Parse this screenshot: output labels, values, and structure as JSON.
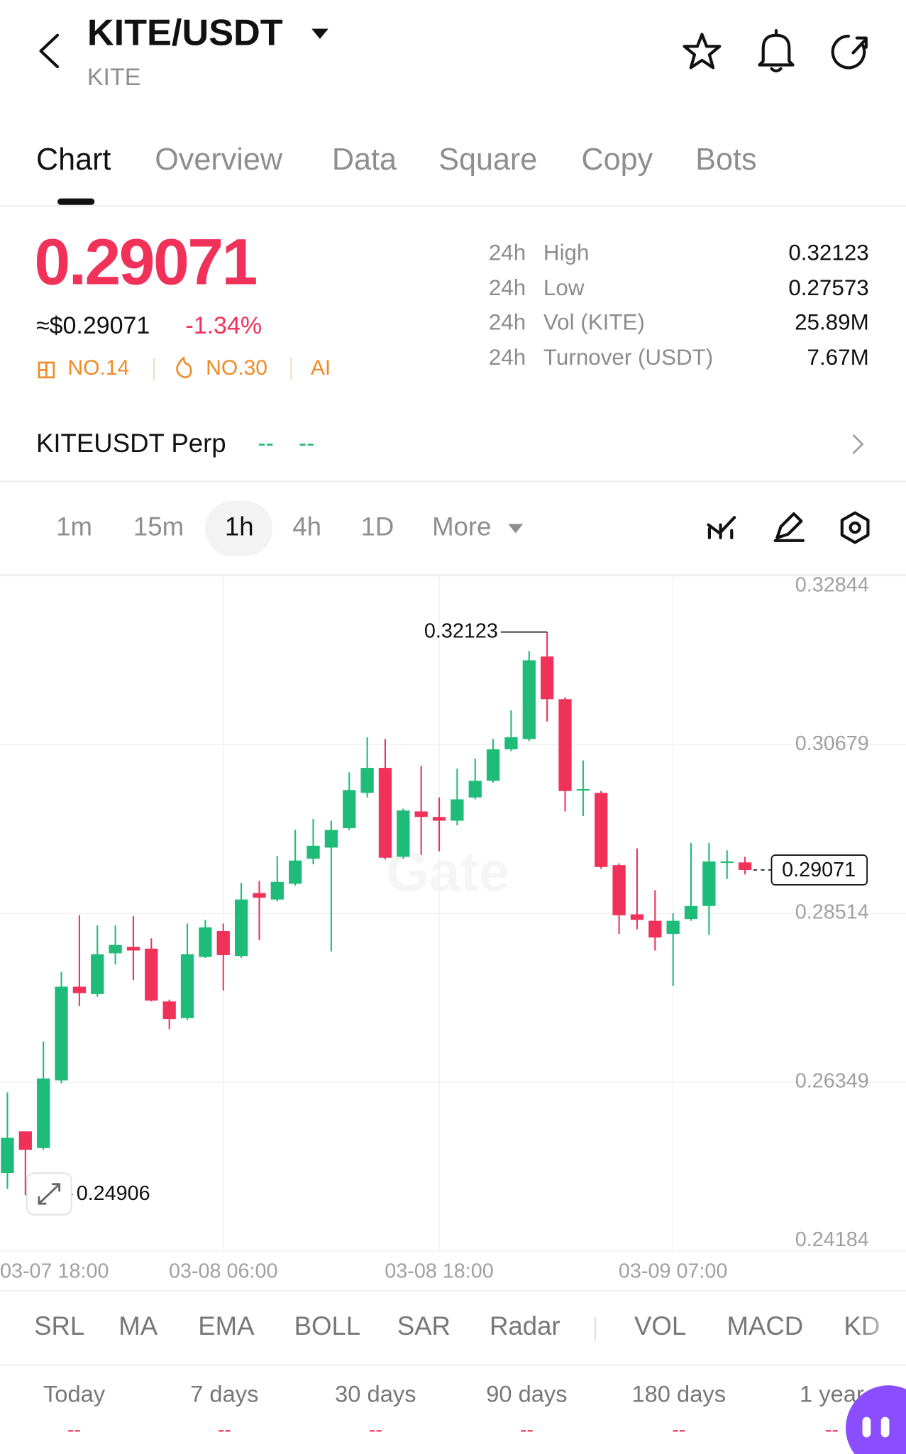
{
  "header": {
    "title": "KITE/USDT",
    "subtitle": "KITE"
  },
  "tabs": [
    "Chart",
    "Overview",
    "Data",
    "Square",
    "Copy",
    "Bots"
  ],
  "ticker": {
    "price": "0.29071",
    "usd_price": "≈$0.29071",
    "change": "-1.34%",
    "badges": [
      "NO.14",
      "NO.30",
      "AI"
    ]
  },
  "stats": [
    {
      "period": "24h",
      "label": "High",
      "value": "0.32123"
    },
    {
      "period": "24h",
      "label": "Low",
      "value": "0.27573"
    },
    {
      "period": "24h",
      "label": "Vol (KITE)",
      "value": "25.89M"
    },
    {
      "period": "24h",
      "label": "Turnover (USDT)",
      "value": "7.67M"
    }
  ],
  "perp": {
    "name": "KITEUSDT Perp",
    "price": "--",
    "change": "--"
  },
  "intervals": [
    "1m",
    "15m",
    "1h",
    "4h",
    "1D",
    "More"
  ],
  "indicators": [
    "SRL",
    "MA",
    "EMA",
    "BOLL",
    "SAR",
    "Radar",
    "VOL",
    "MACD",
    "KD"
  ],
  "periods": [
    {
      "label": "Today",
      "value": "--"
    },
    {
      "label": "7 days",
      "value": "--"
    },
    {
      "label": "30 days",
      "value": "--"
    },
    {
      "label": "90 days",
      "value": "--"
    },
    {
      "label": "180 days",
      "value": "--"
    },
    {
      "label": "1 year",
      "value": "--"
    }
  ],
  "chart_data": {
    "type": "candlestick",
    "watermark": "Gate",
    "categories": [
      "03-07 18:00",
      null,
      null,
      null,
      null,
      null,
      null,
      null,
      null,
      null,
      null,
      null,
      "03-08 06:00",
      null,
      null,
      null,
      null,
      null,
      null,
      null,
      null,
      null,
      null,
      null,
      "03-08 18:00",
      null,
      null,
      null,
      null,
      null,
      null,
      null,
      null,
      null,
      null,
      null,
      null,
      "03-09 07:00",
      null,
      null,
      null,
      null
    ],
    "open": [
      0.25183,
      0.25718,
      0.25504,
      0.26372,
      0.27574,
      0.27479,
      0.28002,
      0.28085,
      0.28062,
      0.27384,
      0.2717,
      0.27955,
      0.28288,
      0.27967,
      0.28775,
      0.28692,
      0.28894,
      0.29216,
      0.29358,
      0.29608,
      0.3006,
      0.30381,
      0.2924,
      0.29822,
      0.29751,
      0.29703,
      0.30001,
      0.30215,
      0.30619,
      0.3075,
      0.31809,
      0.31262,
      0.30096,
      0.3006,
      0.29133,
      0.28502,
      0.28419,
      0.28252,
      0.28442,
      0.28609,
      0.29168,
      0.29168
    ],
    "high": [
      0.26218,
      0.25718,
      0.26872,
      0.27764,
      0.2849,
      0.28359,
      0.28359,
      0.28478,
      0.28193,
      0.27408,
      0.28383,
      0.28431,
      0.28383,
      0.28906,
      0.2893,
      0.29251,
      0.29584,
      0.29727,
      0.29703,
      0.30322,
      0.30774,
      0.3075,
      0.29858,
      0.30405,
      0.30001,
      0.3037,
      0.305,
      0.3075,
      0.31119,
      0.3188,
      0.32123,
      0.31286,
      0.30477,
      0.30084,
      0.29156,
      0.29347,
      0.28811,
      0.28514,
      0.29418,
      0.29418,
      0.29323,
      0.2924
    ],
    "low": [
      0.2498,
      0.24906,
      0.2548,
      0.26336,
      0.27324,
      0.27443,
      0.2786,
      0.27657,
      0.27384,
      0.27027,
      0.27146,
      0.27943,
      0.27526,
      0.27943,
      0.28169,
      0.28668,
      0.2887,
      0.29144,
      0.28026,
      0.29584,
      0.30001,
      0.29204,
      0.29216,
      0.29263,
      0.29311,
      0.29644,
      0.29977,
      0.30191,
      0.30596,
      0.30726,
      0.30976,
      0.29822,
      0.29763,
      0.29085,
      0.28252,
      0.28311,
      0.28038,
      0.27586,
      0.28419,
      0.2824,
      0.28954,
      0.29014
    ],
    "close": [
      0.25635,
      0.2548,
      0.26396,
      0.27574,
      0.27491,
      0.2799,
      0.28109,
      0.28038,
      0.27396,
      0.27158,
      0.2799,
      0.28335,
      0.27979,
      0.28692,
      0.28716,
      0.28918,
      0.29192,
      0.29382,
      0.29584,
      0.30096,
      0.30381,
      0.29228,
      0.29834,
      0.29751,
      0.29703,
      0.29977,
      0.30215,
      0.30619,
      0.30774,
      0.31761,
      0.31262,
      0.30084,
      0.30108,
      0.29109,
      0.2849,
      0.28431,
      0.28204,
      0.28419,
      0.28609,
      0.2918,
      0.2918,
      0.29071
    ],
    "up_color": "#1ebc78",
    "down_color": "#f0325a",
    "ylim": [
      0.24184,
      0.32844
    ],
    "yticks": [
      0.24184,
      0.26349,
      0.28514,
      0.30679,
      0.32844
    ],
    "grid": true,
    "annotations": {
      "high": 0.32123,
      "low": 0.24906,
      "last": 0.29071
    }
  }
}
